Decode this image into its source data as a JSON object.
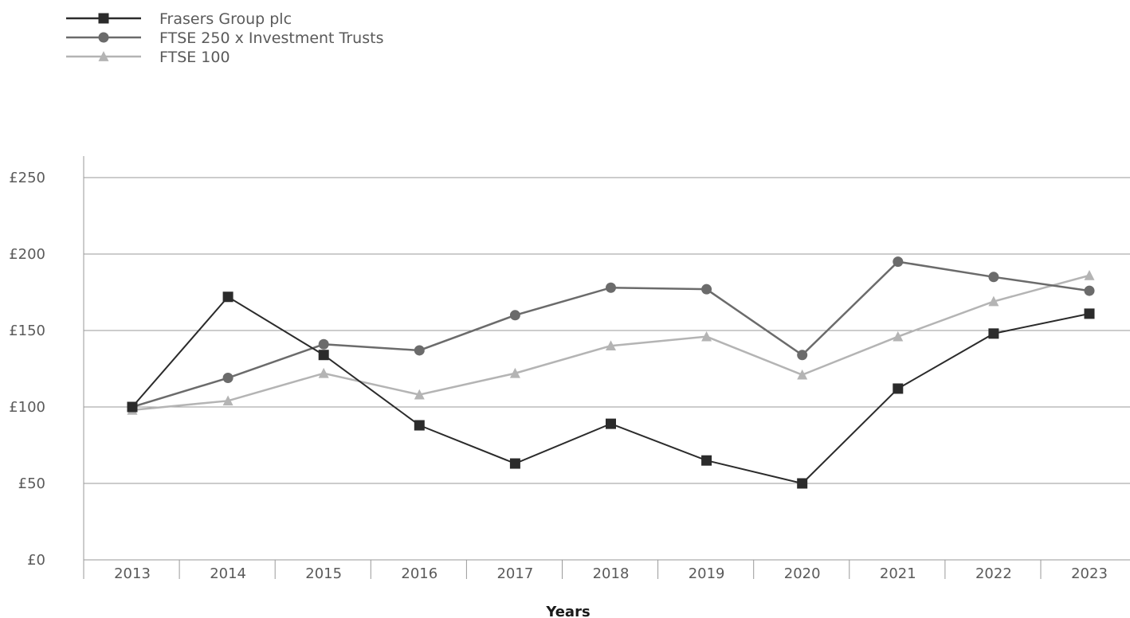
{
  "chart_data": {
    "type": "line",
    "title": "",
    "xlabel": "Years",
    "ylabel": "",
    "categories": [
      "2013",
      "2014",
      "2015",
      "2016",
      "2017",
      "2018",
      "2019",
      "2020",
      "2021",
      "2022",
      "2023"
    ],
    "ylim": [
      0,
      250
    ],
    "yticks": [
      0,
      50,
      100,
      150,
      200,
      250
    ],
    "ytick_labels": [
      "£0",
      "£50",
      "£100",
      "£150",
      "£200",
      "£250"
    ],
    "grid": true,
    "legend_position": "top-left",
    "series": [
      {
        "name": "Frasers Group plc",
        "marker": "square",
        "color": "#2b2b2b",
        "values": [
          100,
          172,
          134,
          88,
          63,
          89,
          65,
          50,
          112,
          148,
          161
        ]
      },
      {
        "name": "FTSE 250 x Investment Trusts",
        "marker": "circle",
        "color": "#6b6b6b",
        "values": [
          100,
          119,
          141,
          137,
          160,
          178,
          177,
          134,
          195,
          185,
          176
        ]
      },
      {
        "name": "FTSE 100",
        "marker": "triangle",
        "color": "#b4b4b4",
        "values": [
          98,
          104,
          122,
          108,
          122,
          140,
          146,
          121,
          146,
          169,
          186
        ]
      }
    ]
  }
}
